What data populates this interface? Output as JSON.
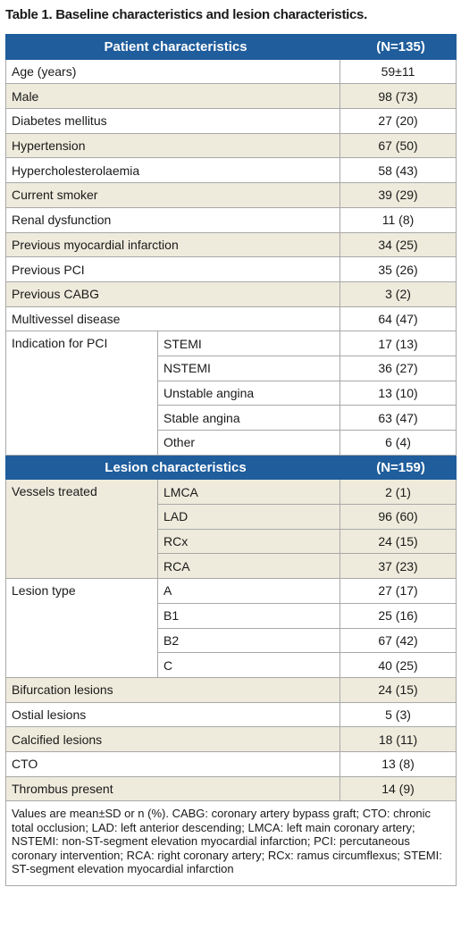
{
  "title": "Table 1. Baseline characteristics and lesion characteristics.",
  "sections": [
    {
      "header": [
        "Patient characteristics",
        "(N=135)"
      ],
      "rows": [
        {
          "label": "Age (years)",
          "value": "59±11",
          "shaded": false
        },
        {
          "label": "Male",
          "value": "98 (73)",
          "shaded": true
        },
        {
          "label": "Diabetes mellitus",
          "value": "27 (20)",
          "shaded": false
        },
        {
          "label": "Hypertension",
          "value": "67 (50)",
          "shaded": true
        },
        {
          "label": "Hypercholesterolaemia",
          "value": "58 (43)",
          "shaded": false
        },
        {
          "label": "Current smoker",
          "value": "39 (29)",
          "shaded": true
        },
        {
          "label": "Renal dysfunction",
          "value": "11 (8)",
          "shaded": false
        },
        {
          "label": "Previous myocardial infarction",
          "value": "34 (25)",
          "shaded": true
        },
        {
          "label": "Previous PCI",
          "value": "35 (26)",
          "shaded": false
        },
        {
          "label": "Previous CABG",
          "value": "3 (2)",
          "shaded": true
        },
        {
          "label": "Multivessel disease",
          "value": "64 (47)",
          "shaded": false
        },
        {
          "label": "Indication for PCI",
          "shaded": false,
          "items": [
            {
              "label": "STEMI",
              "value": "17 (13)"
            },
            {
              "label": "NSTEMI",
              "value": "36 (27)"
            },
            {
              "label": "Unstable angina",
              "value": "13 (10)"
            },
            {
              "label": "Stable angina",
              "value": "63 (47)"
            },
            {
              "label": "Other",
              "value": "6 (4)"
            }
          ]
        }
      ]
    },
    {
      "header": [
        "Lesion characteristics",
        "(N=159)"
      ],
      "rows": [
        {
          "label": "Vessels treated",
          "shaded": true,
          "items": [
            {
              "label": "LMCA",
              "value": "2 (1)"
            },
            {
              "label": "LAD",
              "value": "96 (60)"
            },
            {
              "label": "RCx",
              "value": "24 (15)"
            },
            {
              "label": "RCA",
              "value": "37 (23)"
            }
          ]
        },
        {
          "label": "Lesion type",
          "shaded": false,
          "items": [
            {
              "label": "A",
              "value": "27 (17)"
            },
            {
              "label": "B1",
              "value": "25 (16)"
            },
            {
              "label": "B2",
              "value": "67 (42)"
            },
            {
              "label": "C",
              "value": "40 (25)"
            }
          ]
        },
        {
          "label": "Bifurcation lesions",
          "value": "24 (15)",
          "shaded": true
        },
        {
          "label": "Ostial lesions",
          "value": "5 (3)",
          "shaded": false
        },
        {
          "label": "Calcified lesions",
          "value": "18 (11)",
          "shaded": true
        },
        {
          "label": "CTO",
          "value": "13 (8)",
          "shaded": false
        },
        {
          "label": "Thrombus present",
          "value": "14 (9)",
          "shaded": true
        }
      ]
    }
  ],
  "footnote": "Values are mean±SD or n (%). CABG: coronary artery bypass graft; CTO: chronic total occlusion; LAD: left anterior descending; LMCA: left main coronary artery; NSTEMI: non-ST-segment elevation myocardial infarction; PCI: percutaneous coronary intervention; RCA: right coronary artery; RCx: ramus circumflexus; STEMI: ST-segment elevation myocardial infarction"
}
